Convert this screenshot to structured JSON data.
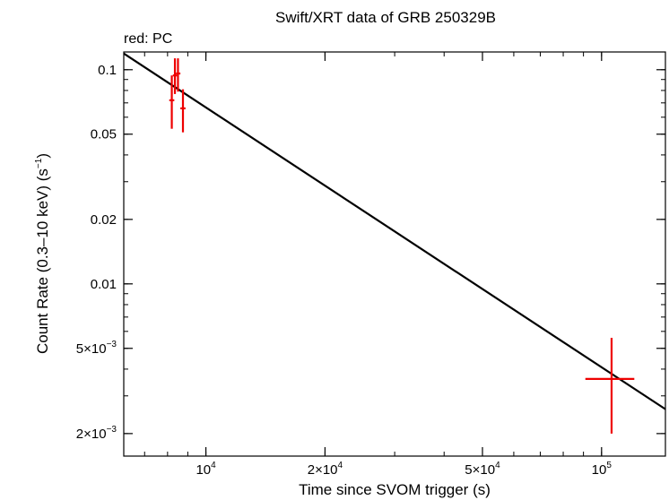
{
  "chart_data": {
    "type": "scatter",
    "title": "Swift/XRT data of GRB 250329B",
    "subtitle": "red: PC",
    "xlabel": "Time since SVOM trigger (s)",
    "ylabel_main": "Count Rate (0.3–10 keV) (s",
    "ylabel_sup": "−1",
    "ylabel_end": ")",
    "x_scale": "log",
    "y_scale": "log",
    "xlim": [
      6200,
      145000
    ],
    "ylim": [
      0.00157,
      0.121
    ],
    "x_ticks": [
      {
        "value": 10000,
        "mant": "10",
        "exp": "4"
      },
      {
        "value": 20000,
        "mant": "2×10",
        "exp": "4"
      },
      {
        "value": 50000,
        "mant": "5×10",
        "exp": "4"
      },
      {
        "value": 100000,
        "mant": "10",
        "exp": "5"
      }
    ],
    "y_ticks": [
      {
        "value": 0.1,
        "mant": "0.1",
        "exp": ""
      },
      {
        "value": 0.05,
        "mant": "0.05",
        "exp": ""
      },
      {
        "value": 0.02,
        "mant": "0.02",
        "exp": ""
      },
      {
        "value": 0.01,
        "mant": "0.01",
        "exp": ""
      },
      {
        "value": 0.005,
        "mant": "5×10",
        "exp": "−3"
      },
      {
        "value": 0.002,
        "mant": "2×10",
        "exp": "−3"
      }
    ],
    "series": [
      {
        "name": "PC",
        "color": "#ee0000",
        "points": [
          {
            "x": 8200,
            "x_lo": 8080,
            "x_hi": 8320,
            "y": 0.072,
            "y_lo": 0.053,
            "y_hi": 0.094
          },
          {
            "x": 8350,
            "x_lo": 8250,
            "x_hi": 8450,
            "y": 0.094,
            "y_lo": 0.077,
            "y_hi": 0.113
          },
          {
            "x": 8500,
            "x_lo": 8400,
            "x_hi": 8620,
            "y": 0.096,
            "y_lo": 0.079,
            "y_hi": 0.113
          },
          {
            "x": 8750,
            "x_lo": 8620,
            "x_hi": 8880,
            "y": 0.066,
            "y_lo": 0.051,
            "y_hi": 0.081
          },
          {
            "x": 106000,
            "x_lo": 91000,
            "x_hi": 121000,
            "y": 0.0036,
            "y_lo": 0.002,
            "y_hi": 0.0056
          }
        ]
      }
    ],
    "model": {
      "name": "power-law fit",
      "color": "#000000",
      "x": [
        6200,
        145000
      ],
      "y": [
        0.119,
        0.0026
      ]
    }
  }
}
